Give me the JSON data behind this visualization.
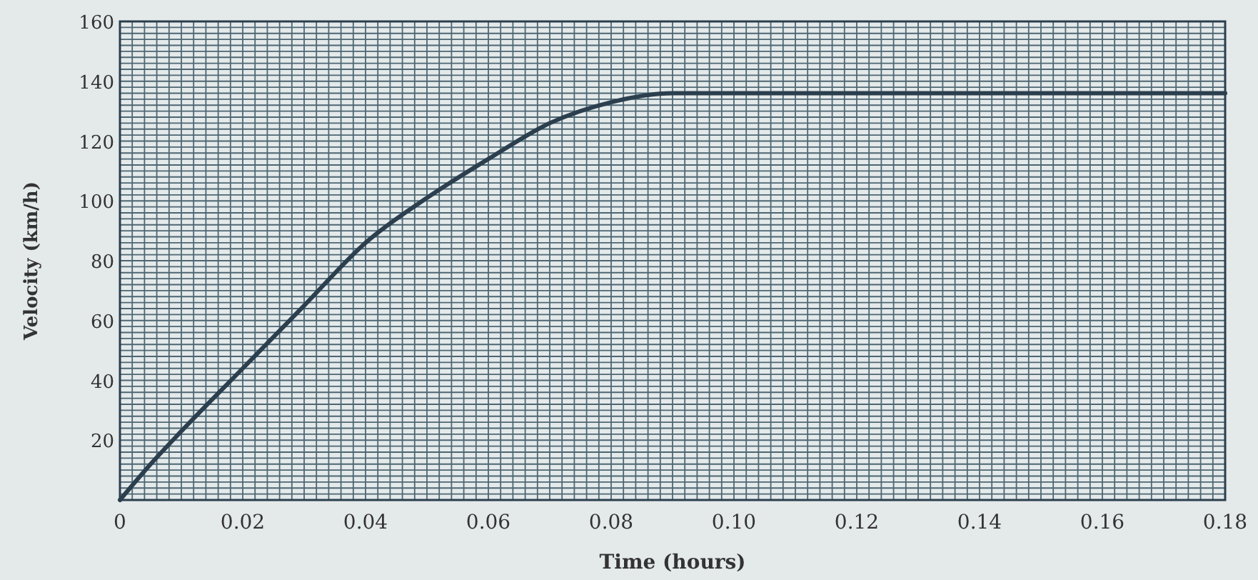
{
  "chart_data": {
    "type": "line",
    "xlabel": "Time (hours)",
    "ylabel": "Velocity (km/h)",
    "series": [
      {
        "color": "#2b3f4e",
        "x": [
          0,
          0.005,
          0.01,
          0.02,
          0.03,
          0.04,
          0.05,
          0.06,
          0.07,
          0.08,
          0.09,
          0.1,
          0.18
        ],
        "values": [
          0,
          12,
          23,
          44,
          65,
          86,
          101,
          114,
          126,
          133,
          136,
          136,
          136
        ]
      }
    ],
    "xlim": [
      0,
      0.18
    ],
    "xticks": [
      0,
      {
        "value": 0.02,
        "label": "0.02"
      },
      {
        "value": 0.04,
        "label": "0.04"
      },
      {
        "value": 0.06,
        "label": "0.06"
      },
      {
        "value": 0.08,
        "label": "0.08"
      },
      {
        "value": 0.1,
        "label": "0.10"
      },
      {
        "value": 0.12,
        "label": "0.12"
      },
      {
        "value": 0.14,
        "label": "0.14"
      },
      {
        "value": 0.16,
        "label": "0.16"
      },
      {
        "value": 0.18,
        "label": "0.18"
      }
    ],
    "ylim": [
      0,
      160
    ],
    "yticks": [
      20,
      40,
      60,
      80,
      100,
      120,
      140,
      160
    ],
    "grid": true,
    "marker": "none",
    "line_style": "solid"
  }
}
